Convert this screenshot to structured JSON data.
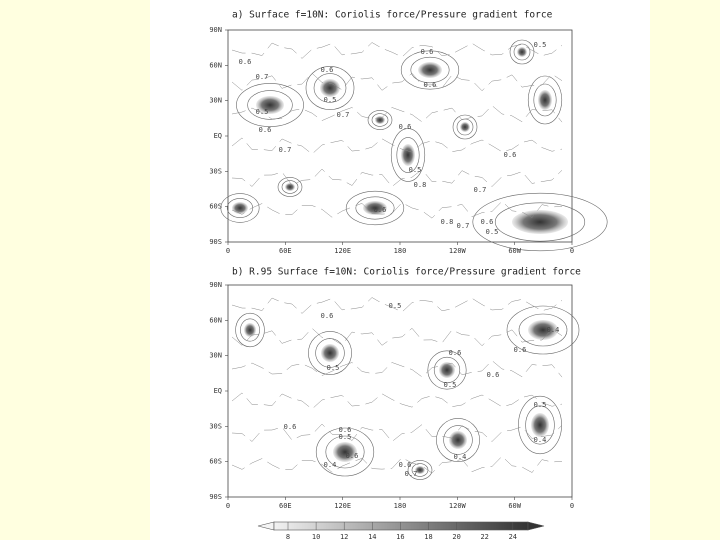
{
  "panels": [
    {
      "title": "a)  Surface  f=10N: Coriolis force/Pressure gradient force",
      "lat_labels": [
        "90N",
        "60N",
        "30N",
        "EQ",
        "30S",
        "60S",
        "90S"
      ],
      "lon_labels": [
        "0",
        "60E",
        "120E",
        "180",
        "120W",
        "60W",
        "0"
      ],
      "contour_labels": [
        "0.6",
        "0.5",
        "0.6",
        "0.7",
        "0.6",
        "0.5",
        "0.7",
        "0.5",
        "0.6",
        "0.6",
        "0.6",
        "0.5",
        "0.8",
        "0.7",
        "0.7",
        "0.6",
        "0.8",
        "0.7",
        "0.6",
        "0.5",
        "0.6"
      ]
    },
    {
      "title": "b)  R.95 Surface  f=10N: Coriolis force/Pressure gradient force",
      "lat_labels": [
        "90N",
        "60N",
        "30N",
        "EQ",
        "30S",
        "60S",
        "90S"
      ],
      "lon_labels": [
        "0",
        "60E",
        "120E",
        "180",
        "120W",
        "60W",
        "0"
      ],
      "contour_labels": [
        "0.5",
        "0.6",
        "0.5",
        "0.6",
        "0.5",
        "0.6",
        "0.4",
        "0.6",
        "0.6",
        "0.5",
        "0.4",
        "0.6",
        "0.4",
        "0.5",
        "0.4",
        "0.6",
        "0.7",
        "0.6"
      ]
    }
  ],
  "colorbar": {
    "labels": [
      "8",
      "10",
      "12",
      "14",
      "16",
      "18",
      "20",
      "22",
      "24"
    ]
  }
}
